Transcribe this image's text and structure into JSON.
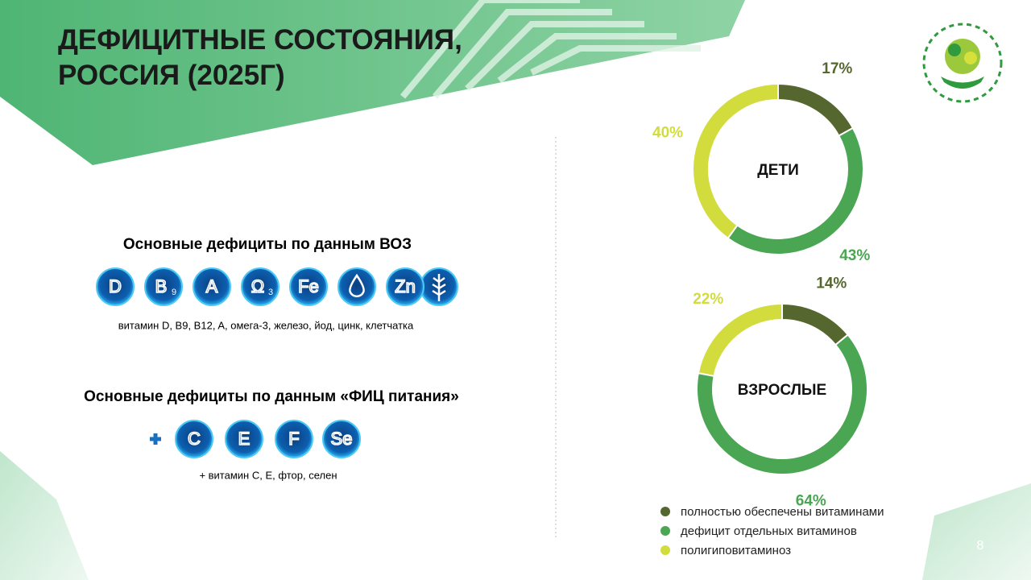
{
  "title": "ДЕФИЦИТНЫЕ СОСТОЯНИЯ, РОССИЯ (2025Г)",
  "who": {
    "heading": "Основные дефициты по данным ВОЗ",
    "icons": [
      {
        "symbol": "D"
      },
      {
        "symbol": "B",
        "index": "9"
      },
      {
        "symbol": "A"
      },
      {
        "symbol": "Ω",
        "index": "3"
      },
      {
        "symbol": "Fe"
      },
      {
        "symbol": "Zn"
      }
    ],
    "caption": "витамин D, B9, B12, A, омега-3, железо, йод, цинк, клетчатка"
  },
  "fic": {
    "heading": "Основные дефициты по данным «ФИЦ питания»",
    "icons": [
      {
        "symbol": "C"
      },
      {
        "symbol": "E"
      },
      {
        "symbol": "F"
      },
      {
        "symbol": "Se"
      }
    ],
    "caption": "+ витамин C, E, фтор, селен"
  },
  "legend": {
    "labels": [
      "полностью обеспечены витаминами",
      "дефицит отдельных витаминов",
      "полигиповитаминоз"
    ],
    "colors": [
      "#55672e",
      "#4aa653",
      "#d2dc3c"
    ]
  },
  "page_number": "8",
  "chart_data": [
    {
      "type": "pie",
      "title": "ДЕТИ",
      "values": [
        17,
        43,
        40
      ],
      "value_labels": [
        "17%",
        "43%",
        "40%"
      ]
    },
    {
      "type": "pie",
      "title": "ВЗРОСЛЫЕ",
      "values": [
        14,
        64,
        22
      ],
      "value_labels": [
        "14%",
        "64%",
        "22%"
      ]
    }
  ]
}
